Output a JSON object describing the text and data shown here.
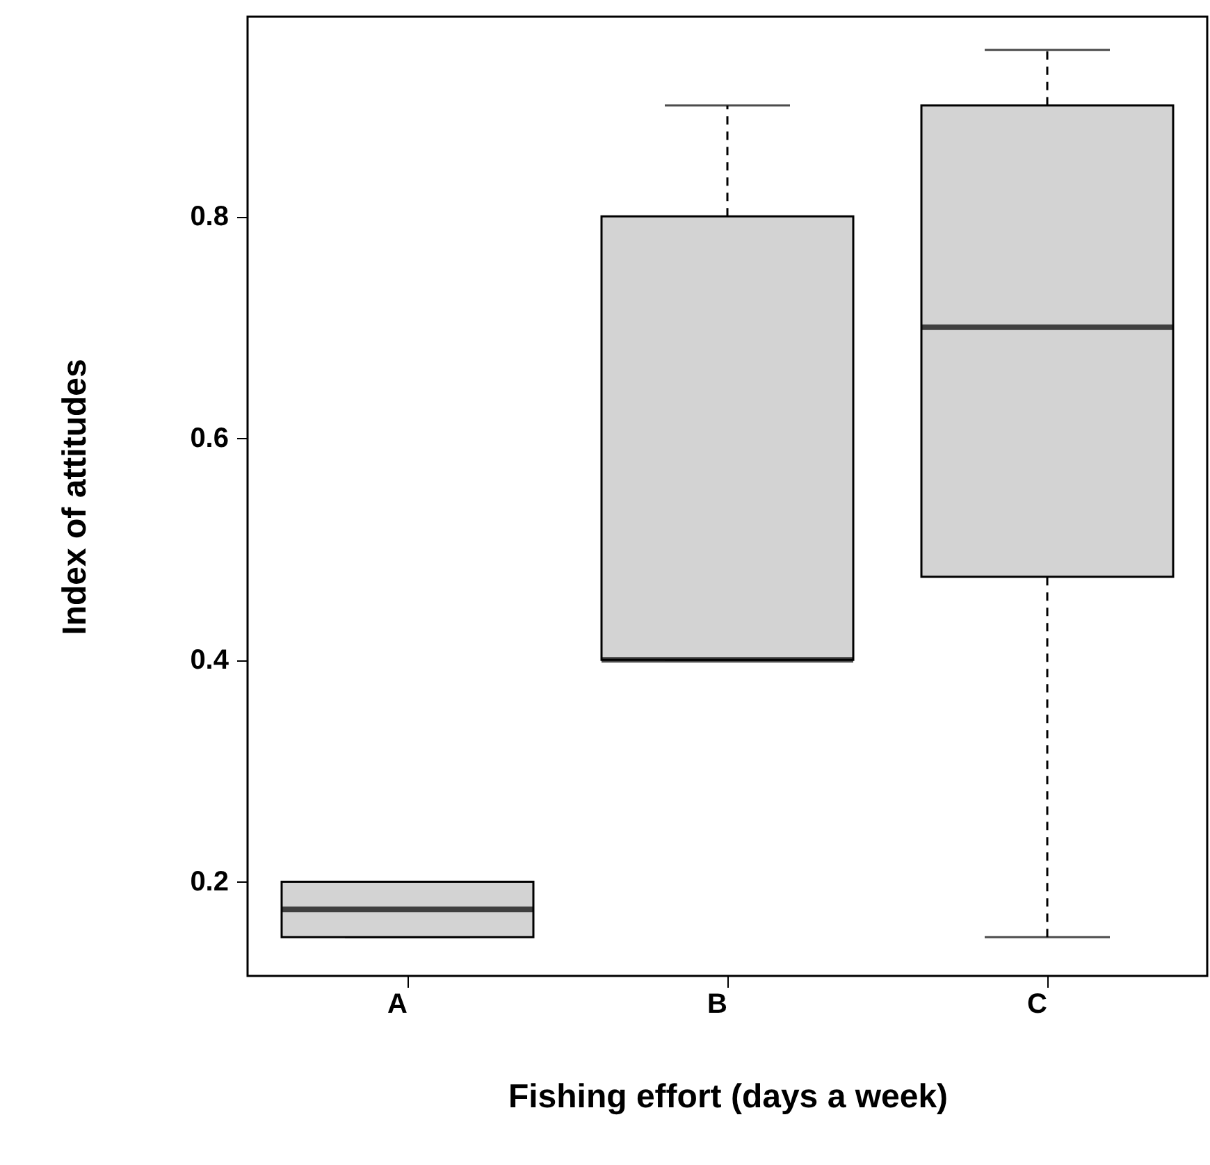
{
  "chart_data": {
    "type": "box",
    "xlabel": "Fishing effort (days a week)",
    "ylabel": "Index of attitudes",
    "categories": [
      "A",
      "B",
      "C"
    ],
    "color": "#d3d3d3",
    "boxes": [
      {
        "low": 0.15,
        "q1": 0.15,
        "median": 0.175,
        "q3": 0.2,
        "high": 0.2
      },
      {
        "low": 0.4,
        "q1": 0.4,
        "median": 0.4,
        "q3": 0.8,
        "high": 0.9
      },
      {
        "low": 0.15,
        "q1": 0.475,
        "median": 0.7,
        "q3": 0.9,
        "high": 0.95
      }
    ],
    "ylim": [
      0.115,
      0.98
    ],
    "yticks": [
      0.2,
      0.4,
      0.6,
      0.8
    ],
    "grid": false,
    "line_style": "dashed"
  }
}
